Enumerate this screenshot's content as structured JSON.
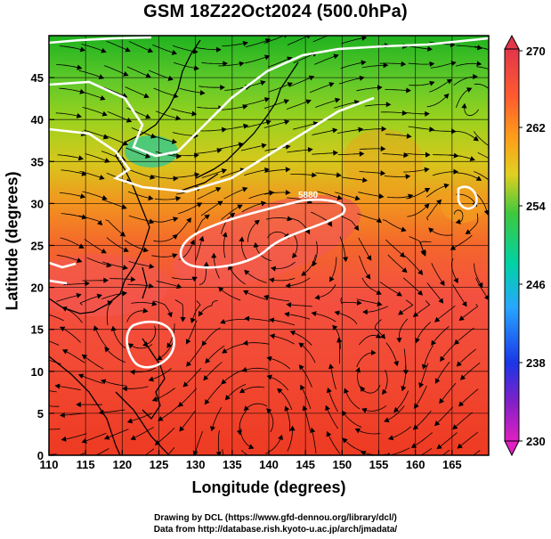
{
  "title": "GSM 18Z22Oct2024 (500.0hPa)",
  "x_axis": {
    "label": "Longitude (degrees)",
    "ticks": [
      "110",
      "115",
      "120",
      "125",
      "130",
      "135",
      "140",
      "145",
      "150",
      "155",
      "160",
      "165"
    ]
  },
  "y_axis": {
    "label": "Latitude  (degrees)",
    "ticks": [
      "0",
      "5",
      "10",
      "15",
      "20",
      "25",
      "30",
      "35",
      "40",
      "45"
    ]
  },
  "colorbar": {
    "labels": [
      "270",
      "262",
      "254",
      "246",
      "238",
      "230"
    ],
    "colors": [
      "#e2364a",
      "#ff5a30",
      "#ff9a1a",
      "#e0d020",
      "#3ec83e",
      "#00d2a6",
      "#28a6ff",
      "#1a36e8",
      "#8020c8",
      "#e020c0"
    ]
  },
  "contour_label": "5880",
  "credits": {
    "line1": "Drawing by DCL (https://www.gfd-dennou.org/library/dcl/)",
    "line2": "Data from http://database.rish.kyoto-u.ac.jp/arch/jmadata/"
  }
}
